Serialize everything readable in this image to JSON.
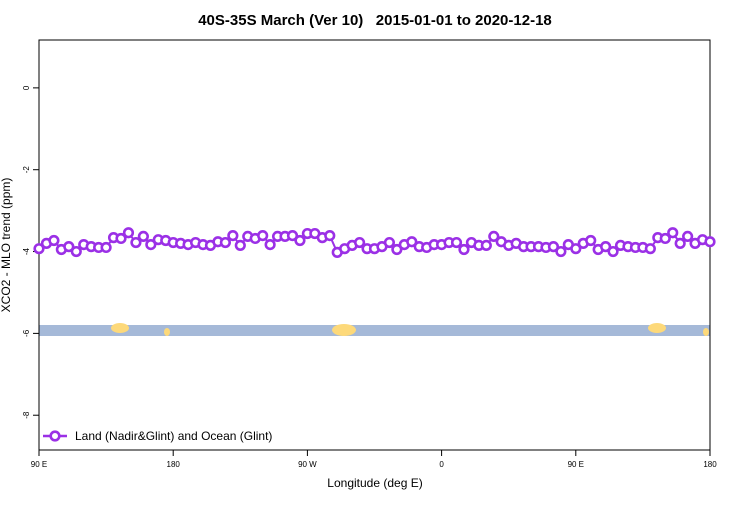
{
  "chart_data": {
    "type": "line",
    "title": "40S-35S March (Ver 10)   2015-01-01 to 2020-12-18",
    "x_label": "Longitude (deg E)",
    "y_label": "XCO2 - MLO trend (ppm)",
    "xlim": [
      90,
      540
    ],
    "ylim": [
      -8.85,
      1.17
    ],
    "xticks": [
      {
        "value": 90,
        "label": "90 E"
      },
      {
        "value": 180,
        "label": "180"
      },
      {
        "value": 270,
        "label": "90 W"
      },
      {
        "value": 360,
        "label": "0"
      },
      {
        "value": 450,
        "label": "90 E"
      },
      {
        "value": 540,
        "label": "180"
      }
    ],
    "yticks": [
      0,
      -2,
      -4,
      -6,
      -8
    ],
    "legend": "bottom-left",
    "x": [
      90,
      95,
      100,
      105,
      110,
      115,
      120,
      125,
      130,
      135,
      140,
      145,
      150,
      155,
      160,
      165,
      170,
      175,
      180,
      185,
      190,
      195,
      200,
      205,
      210,
      215,
      220,
      225,
      230,
      235,
      240,
      245,
      250,
      255,
      260,
      265,
      270,
      275,
      280,
      285,
      290,
      295,
      300,
      305,
      310,
      315,
      320,
      325,
      330,
      335,
      340,
      345,
      350,
      355,
      360,
      365,
      370,
      375,
      380,
      385,
      390,
      395,
      400,
      405,
      410,
      415,
      420,
      425,
      430,
      435,
      440,
      445,
      450,
      455,
      460,
      465,
      470,
      475,
      480,
      485,
      490,
      495,
      500,
      505,
      510,
      515,
      520,
      525,
      530,
      535,
      540
    ],
    "series": [
      {
        "name": "Land (Nadir&Glint) and Ocean (Glint)",
        "color": "#9b30e6",
        "values": [
          -3.93,
          -3.8,
          -3.73,
          -3.95,
          -3.88,
          -4.0,
          -3.83,
          -3.88,
          -3.9,
          -3.9,
          -3.66,
          -3.68,
          -3.54,
          -3.78,
          -3.63,
          -3.83,
          -3.71,
          -3.73,
          -3.78,
          -3.8,
          -3.83,
          -3.78,
          -3.83,
          -3.85,
          -3.76,
          -3.78,
          -3.61,
          -3.85,
          -3.63,
          -3.68,
          -3.61,
          -3.83,
          -3.63,
          -3.63,
          -3.61,
          -3.73,
          -3.56,
          -3.56,
          -3.66,
          -3.61,
          -4.02,
          -3.93,
          -3.85,
          -3.78,
          -3.93,
          -3.93,
          -3.88,
          -3.78,
          -3.95,
          -3.83,
          -3.76,
          -3.88,
          -3.9,
          -3.83,
          -3.83,
          -3.78,
          -3.78,
          -3.95,
          -3.78,
          -3.85,
          -3.85,
          -3.63,
          -3.76,
          -3.85,
          -3.8,
          -3.88,
          -3.88,
          -3.88,
          -3.9,
          -3.88,
          -4.0,
          -3.83,
          -3.93,
          -3.8,
          -3.73,
          -3.95,
          -3.88,
          -4.0,
          -3.85,
          -3.88,
          -3.9,
          -3.9,
          -3.93,
          -3.66,
          -3.68,
          -3.54,
          -3.8,
          -3.63,
          -3.8,
          -3.71,
          -3.76
        ]
      }
    ]
  }
}
